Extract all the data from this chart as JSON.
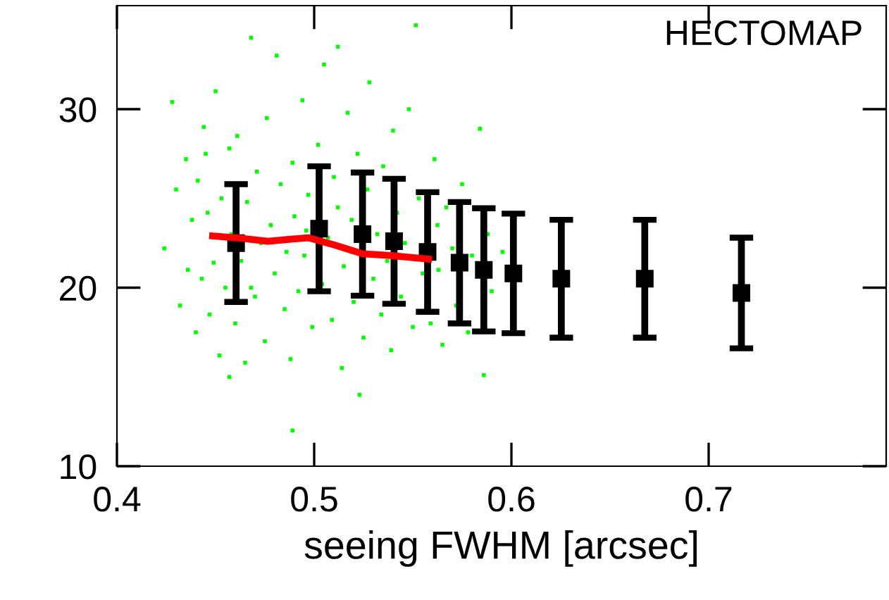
{
  "chart_data": {
    "type": "scatter",
    "xlabel": "seeing FWHM [arcsec]",
    "annotations": [
      "HECTOMAP"
    ],
    "xlim": [
      0.4,
      0.79
    ],
    "ylim": [
      10,
      35.8
    ],
    "xticks": [
      0.4,
      0.5,
      0.6,
      0.7
    ],
    "yticks": [
      10,
      20,
      30
    ],
    "grid": false,
    "legend": false,
    "series": [
      {
        "type": "scatter",
        "color": "#00ff00",
        "marker": "square",
        "x": [
          0.424,
          0.428,
          0.43,
          0.432,
          0.435,
          0.436,
          0.438,
          0.44,
          0.441,
          0.443,
          0.444,
          0.446,
          0.447,
          0.449,
          0.45,
          0.452,
          0.453,
          0.455,
          0.457,
          0.458,
          0.46,
          0.461,
          0.463,
          0.465,
          0.466,
          0.468,
          0.47,
          0.471,
          0.473,
          0.475,
          0.476,
          0.478,
          0.48,
          0.481,
          0.483,
          0.485,
          0.486,
          0.488,
          0.489,
          0.49,
          0.492,
          0.494,
          0.495,
          0.497,
          0.499,
          0.496,
          0.502,
          0.504,
          0.505,
          0.507,
          0.509,
          0.51,
          0.512,
          0.514,
          0.515,
          0.517,
          0.519,
          0.52,
          0.522,
          0.519,
          0.525,
          0.527,
          0.528,
          0.53,
          0.532,
          0.534,
          0.535,
          0.537,
          0.539,
          0.54,
          0.542,
          0.544,
          0.546,
          0.548,
          0.55,
          0.5515,
          0.553,
          0.555,
          0.5625,
          0.559,
          0.561,
          0.563,
          0.565,
          0.567,
          0.57,
          0.572,
          0.575,
          0.578,
          0.58,
          0.584,
          0.586,
          0.588,
          0.59,
          0.5955,
          0.468,
          0.489,
          0.457,
          0.523,
          0.445,
          0.512
        ],
        "values": [
          22.2,
          30.4,
          25.5,
          19.0,
          27.2,
          21.0,
          23.8,
          17.5,
          26.0,
          20.5,
          29.0,
          24.2,
          18.5,
          21.4,
          31.0,
          16.2,
          25.0,
          20.0,
          27.8,
          23.0,
          18.0,
          28.5,
          21.5,
          15.8,
          24.8,
          34.0,
          19.5,
          26.5,
          22.5,
          17.0,
          29.5,
          23.5,
          20.8,
          33.0,
          25.8,
          18.8,
          22.0,
          16.0,
          27.0,
          24.0,
          19.8,
          30.5,
          21.8,
          25.2,
          17.8,
          23.2,
          28.0,
          20.2,
          32.5,
          22.8,
          18.2,
          26.2,
          24.5,
          15.5,
          21.2,
          29.8,
          23.8,
          19.2,
          27.5,
          22.0,
          17.2,
          25.5,
          31.5,
          20.5,
          23.0,
          18.5,
          26.8,
          21.5,
          16.5,
          28.8,
          24.2,
          19.5,
          22.5,
          30.0,
          17.8,
          34.7,
          25.0,
          20.8,
          23.5,
          18.0,
          27.2,
          21.0,
          16.8,
          24.5,
          22.2,
          19.0,
          25.8,
          17.5,
          21.8,
          28.9,
          15.1,
          23.0,
          19.8,
          22.0,
          20.0,
          12.0,
          15.0,
          14.0,
          27.5,
          33.5
        ]
      },
      {
        "type": "scatter",
        "color": "#000000",
        "marker": "square",
        "x": [
          0.4604,
          0.5025,
          0.5245,
          0.5405,
          0.5575,
          0.5737,
          0.586,
          0.601,
          0.6253,
          0.6676,
          0.7166
        ],
        "values": [
          22.5,
          23.3,
          23.0,
          22.6,
          22.0,
          21.4,
          21.0,
          20.8,
          20.5,
          20.5,
          19.7
        ],
        "errors": [
          3.3,
          3.5,
          3.45,
          3.5,
          3.35,
          3.4,
          3.45,
          3.35,
          3.3,
          3.3,
          3.1
        ]
      },
      {
        "type": "line",
        "color": "#ff0000",
        "marker": "none",
        "line_style": "solid",
        "x": [
          0.4485,
          0.46,
          0.4767,
          0.4862,
          0.497,
          0.51,
          0.5245,
          0.5388,
          0.558
        ],
        "values": [
          22.9,
          22.8,
          22.6,
          22.7,
          22.8,
          22.4,
          21.9,
          21.8,
          21.6
        ]
      }
    ]
  }
}
